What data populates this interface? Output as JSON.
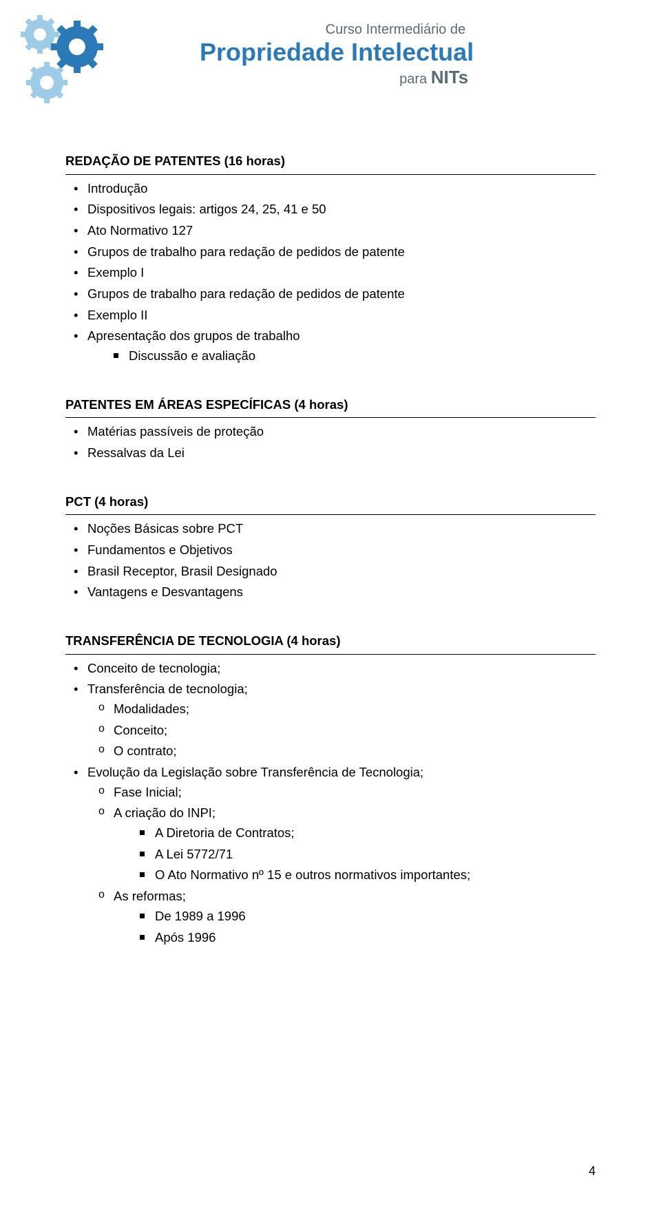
{
  "header": {
    "line1": "Curso Intermediário de",
    "line2": "Propriedade Intelectual",
    "line3_prefix": "para ",
    "line3_bold": "NITs",
    "logo_colors": {
      "blue_dark": "#2a7ab8",
      "blue_light": "#9ecbe6",
      "gray": "#5a6b78"
    }
  },
  "sections": [
    {
      "title": "REDAÇÃO DE PATENTES (16 horas)",
      "items": [
        {
          "text": "Introdução"
        },
        {
          "text": "Dispositivos legais: artigos 24, 25, 41 e 50"
        },
        {
          "text": "Ato Normativo 127"
        },
        {
          "text": "Grupos de trabalho para redação de pedidos de patente"
        },
        {
          "text": "Exemplo I"
        },
        {
          "text": "Grupos de trabalho para redação de pedidos de patente"
        },
        {
          "text": "Exemplo II"
        },
        {
          "text": "Apresentação dos grupos de trabalho",
          "sq": [
            "Discussão e avaliação"
          ]
        }
      ]
    },
    {
      "title": "PATENTES EM ÁREAS ESPECÍFICAS (4 horas)",
      "items": [
        {
          "text": "Matérias passíveis de proteção"
        },
        {
          "text": "Ressalvas da Lei"
        }
      ]
    },
    {
      "title": "PCT (4 horas)",
      "items": [
        {
          "text": "Noções Básicas sobre PCT"
        },
        {
          "text": "Fundamentos e Objetivos"
        },
        {
          "text": "Brasil Receptor, Brasil Designado"
        },
        {
          "text": "Vantagens e Desvantagens"
        }
      ]
    },
    {
      "title": "TRANSFERÊNCIA DE TECNOLOGIA (4 horas)",
      "items": [
        {
          "text": "Conceito de tecnologia;"
        },
        {
          "text": "Transferência de tecnologia;",
          "o": [
            {
              "text": "Modalidades;"
            },
            {
              "text": "Conceito;"
            },
            {
              "text": "O contrato;"
            }
          ]
        },
        {
          "text": "Evolução da Legislação sobre Transferência de Tecnologia;",
          "o": [
            {
              "text": "Fase Inicial;"
            },
            {
              "text": "A criação do INPI;",
              "sq": [
                "A Diretoria de Contratos;",
                "A Lei 5772/71",
                "O Ato Normativo nº 15 e outros normativos importantes;"
              ]
            },
            {
              "text": "As reformas;",
              "sq": [
                "De 1989 a 1996",
                "Após 1996"
              ]
            }
          ]
        }
      ]
    }
  ],
  "page_number": "4"
}
